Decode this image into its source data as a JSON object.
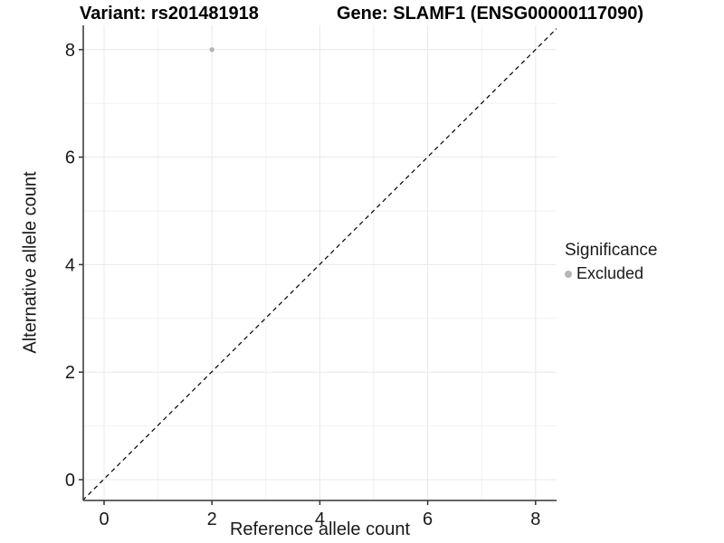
{
  "title": {
    "variant": "Variant: rs201481918",
    "gene": "Gene: SLAMF1 (ENSG00000117090)"
  },
  "axes": {
    "x_title": "Reference allele count",
    "y_title": "Alternative allele count"
  },
  "legend": {
    "title": "Significance",
    "items": [
      {
        "label": "Excluded",
        "color": "#b5b5b5"
      }
    ]
  },
  "colors": {
    "background": "#ffffff",
    "grid_major": "#e8e8e8",
    "grid_minor": "#f2f2f2",
    "axis_line": "#333333",
    "tick_text": "#1a1a1a",
    "point": "#b5b5b5",
    "reference_line": "#000000"
  },
  "chart_data": {
    "type": "scatter",
    "title": "Variant: rs201481918   Gene: SLAMF1 (ENSG00000117090)",
    "xlabel": "Reference allele count",
    "ylabel": "Alternative allele count",
    "xlim": [
      -0.4,
      8.4
    ],
    "ylim": [
      -0.4,
      8.45
    ],
    "x_ticks": [
      0,
      2,
      4,
      6,
      8
    ],
    "y_ticks": [
      0,
      2,
      4,
      6,
      8
    ],
    "x_minor_ticks": [
      1,
      3,
      5,
      7
    ],
    "y_minor_ticks": [
      1,
      3,
      5,
      7
    ],
    "grid": true,
    "legend_position": "right",
    "series": [
      {
        "name": "Excluded",
        "color": "#b5b5b5",
        "points": [
          {
            "x": 2,
            "y": 8
          }
        ]
      }
    ],
    "reference_line": {
      "kind": "identity",
      "equation": "y = x",
      "style": "dashed",
      "color": "#000000"
    }
  }
}
